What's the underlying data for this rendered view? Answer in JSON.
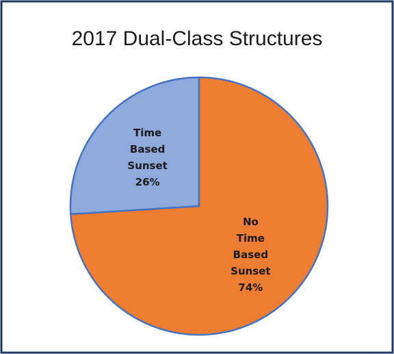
{
  "chart_data": {
    "type": "pie",
    "title": "2017 Dual-Class Structures",
    "categories": [
      "Time Based Sunset",
      "No Time Based Sunset"
    ],
    "values": [
      26,
      74
    ],
    "value_labels": [
      "26%",
      "74%"
    ],
    "colors": [
      "#8faadc",
      "#ed7d31"
    ]
  }
}
